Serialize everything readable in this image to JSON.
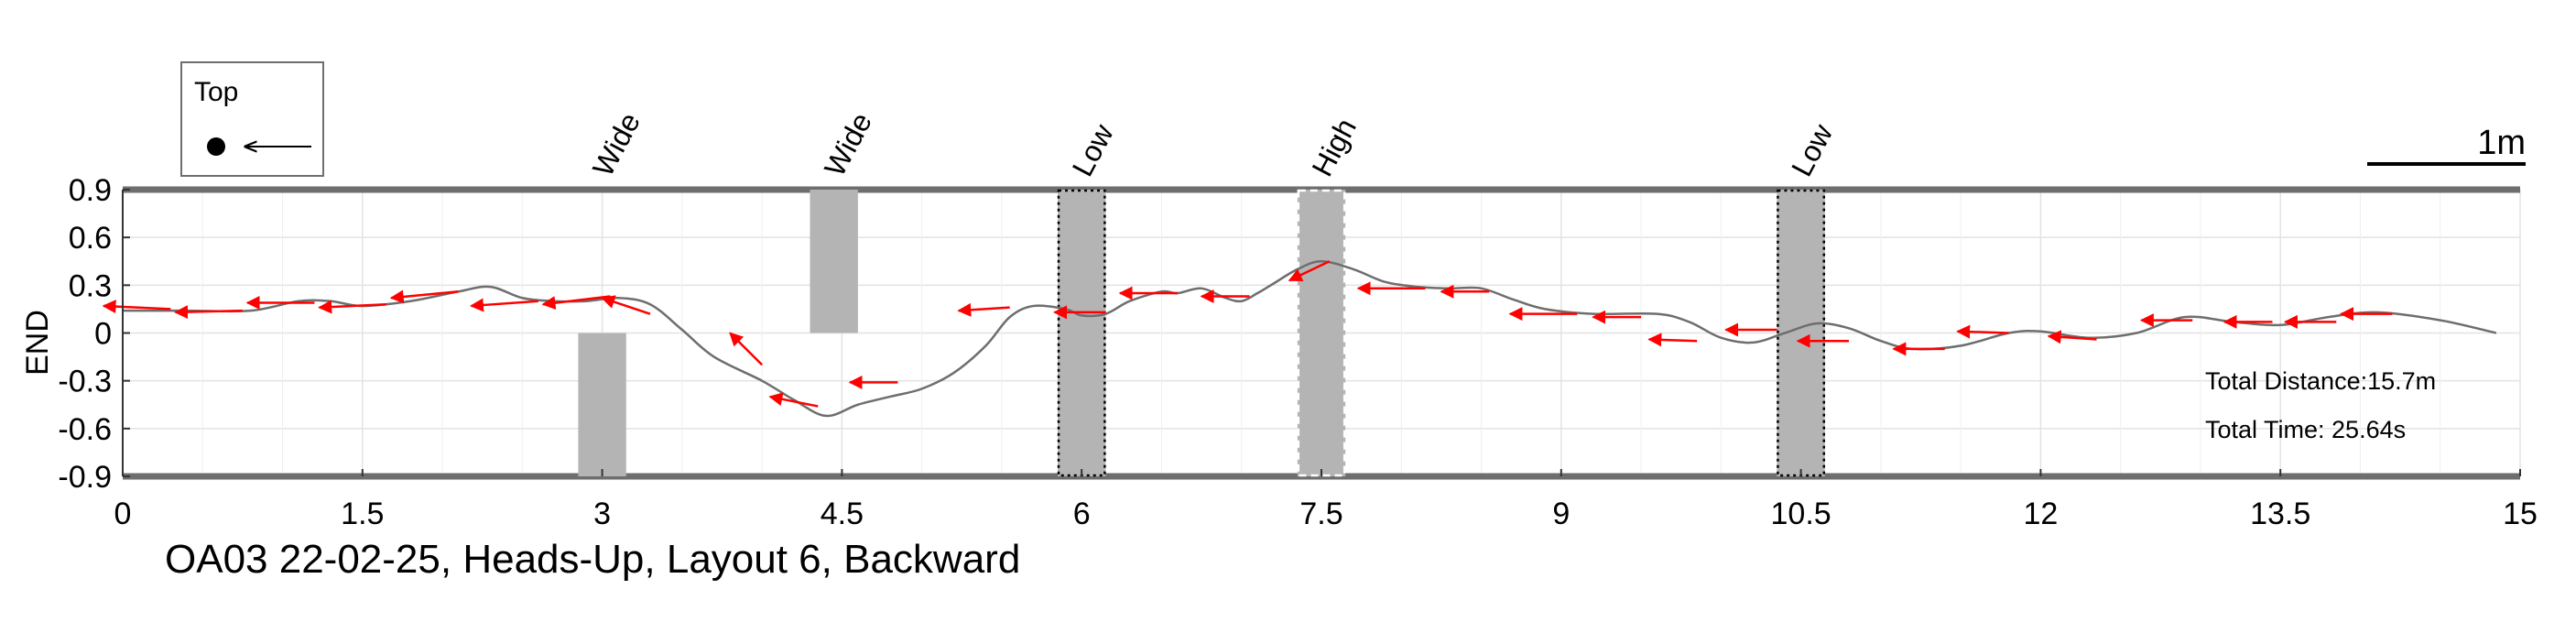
{
  "chart_data": {
    "type": "line",
    "title": "OA03 22-02-25, Heads-Up, Layout 6, Backward",
    "xlabel": "",
    "ylabel": "END",
    "xlim": [
      0,
      15
    ],
    "ylim": [
      -0.9,
      0.9
    ],
    "x_ticks": [
      0,
      1.5,
      3,
      4.5,
      6,
      7.5,
      9,
      10.5,
      12,
      13.5,
      15
    ],
    "x_tick_labels": [
      "0",
      "1.5",
      "3",
      "4.5",
      "6",
      "7.5",
      "9",
      "10.5",
      "12",
      "13.5",
      "15"
    ],
    "y_ticks": [
      -0.9,
      -0.6,
      -0.3,
      0,
      0.3,
      0.6,
      0.9
    ],
    "y_tick_labels": [
      "-0.9",
      "-0.6",
      "-0.3",
      "0",
      "0.3",
      "0.6",
      "0.9"
    ],
    "grid": true,
    "trajectory": {
      "color": "#6e6e6e",
      "x": [
        0,
        0.4,
        0.8,
        1.1,
        1.3,
        1.5,
        1.8,
        2.1,
        2.3,
        2.5,
        2.7,
        2.9,
        3.1,
        3.3,
        3.5,
        3.7,
        4.0,
        4.2,
        4.4,
        4.6,
        4.8,
        5.0,
        5.2,
        5.4,
        5.55,
        5.7,
        5.9,
        6.0,
        6.15,
        6.3,
        6.5,
        6.6,
        6.75,
        6.9,
        7.0,
        7.1,
        7.2,
        7.35,
        7.5,
        7.7,
        7.9,
        8.1,
        8.3,
        8.5,
        8.7,
        8.9,
        9.2,
        9.6,
        9.8,
        10.0,
        10.2,
        10.4,
        10.6,
        10.8,
        11.0,
        11.2,
        11.5,
        11.8,
        12.0,
        12.3,
        12.6,
        12.9,
        13.2,
        13.5,
        13.8,
        14.1,
        14.5,
        14.85
      ],
      "y": [
        0.14,
        0.14,
        0.14,
        0.2,
        0.2,
        0.17,
        0.2,
        0.26,
        0.29,
        0.22,
        0.2,
        0.2,
        0.22,
        0.18,
        0.02,
        -0.15,
        -0.3,
        -0.42,
        -0.52,
        -0.45,
        -0.4,
        -0.35,
        -0.25,
        -0.08,
        0.1,
        0.17,
        0.15,
        0.11,
        0.12,
        0.2,
        0.26,
        0.25,
        0.28,
        0.22,
        0.2,
        0.25,
        0.31,
        0.4,
        0.45,
        0.4,
        0.32,
        0.29,
        0.28,
        0.28,
        0.21,
        0.15,
        0.12,
        0.12,
        0.07,
        -0.03,
        -0.06,
        0.0,
        0.06,
        0.03,
        -0.05,
        -0.1,
        -0.08,
        0.0,
        0.01,
        -0.03,
        0.0,
        0.1,
        0.07,
        0.05,
        0.1,
        0.13,
        0.08,
        0.0
      ]
    },
    "orientation_arrows": {
      "color": "#ff0000",
      "items": [
        {
          "x": 0.3,
          "y": 0.15,
          "dx": -0.42,
          "dy": 0.02
        },
        {
          "x": 0.75,
          "y": 0.14,
          "dx": -0.42,
          "dy": -0.01
        },
        {
          "x": 1.2,
          "y": 0.19,
          "dx": -0.42,
          "dy": 0.0
        },
        {
          "x": 1.65,
          "y": 0.18,
          "dx": -0.42,
          "dy": -0.02
        },
        {
          "x": 2.1,
          "y": 0.26,
          "dx": -0.42,
          "dy": -0.04
        },
        {
          "x": 2.6,
          "y": 0.2,
          "dx": -0.42,
          "dy": -0.03
        },
        {
          "x": 3.05,
          "y": 0.23,
          "dx": -0.42,
          "dy": -0.05
        },
        {
          "x": 3.3,
          "y": 0.12,
          "dx": -0.3,
          "dy": 0.1
        },
        {
          "x": 4.0,
          "y": -0.2,
          "dx": -0.2,
          "dy": 0.2
        },
        {
          "x": 4.35,
          "y": -0.46,
          "dx": -0.3,
          "dy": 0.06
        },
        {
          "x": 4.85,
          "y": -0.31,
          "dx": -0.3,
          "dy": 0.0
        },
        {
          "x": 5.55,
          "y": 0.16,
          "dx": -0.32,
          "dy": -0.02
        },
        {
          "x": 6.15,
          "y": 0.13,
          "dx": -0.32,
          "dy": 0.0
        },
        {
          "x": 6.6,
          "y": 0.25,
          "dx": -0.36,
          "dy": 0.0
        },
        {
          "x": 7.05,
          "y": 0.23,
          "dx": -0.3,
          "dy": 0.0
        },
        {
          "x": 7.55,
          "y": 0.45,
          "dx": -0.25,
          "dy": -0.12
        },
        {
          "x": 8.15,
          "y": 0.28,
          "dx": -0.42,
          "dy": 0.0
        },
        {
          "x": 8.55,
          "y": 0.26,
          "dx": -0.3,
          "dy": 0.0
        },
        {
          "x": 9.1,
          "y": 0.12,
          "dx": -0.42,
          "dy": 0.0
        },
        {
          "x": 9.5,
          "y": 0.1,
          "dx": -0.3,
          "dy": 0.0
        },
        {
          "x": 9.85,
          "y": -0.05,
          "dx": -0.3,
          "dy": 0.01
        },
        {
          "x": 10.35,
          "y": 0.02,
          "dx": -0.32,
          "dy": 0.0
        },
        {
          "x": 10.8,
          "y": -0.05,
          "dx": -0.32,
          "dy": 0.0
        },
        {
          "x": 11.4,
          "y": -0.1,
          "dx": -0.32,
          "dy": 0.0
        },
        {
          "x": 11.8,
          "y": 0.0,
          "dx": -0.32,
          "dy": 0.01
        },
        {
          "x": 12.35,
          "y": -0.04,
          "dx": -0.3,
          "dy": 0.02
        },
        {
          "x": 12.95,
          "y": 0.08,
          "dx": -0.32,
          "dy": 0.0
        },
        {
          "x": 13.45,
          "y": 0.07,
          "dx": -0.3,
          "dy": 0.0
        },
        {
          "x": 13.85,
          "y": 0.07,
          "dx": -0.32,
          "dy": 0.0
        },
        {
          "x": 14.2,
          "y": 0.12,
          "dx": -0.32,
          "dy": 0.0
        }
      ]
    },
    "obstacles": [
      {
        "label": "Wide",
        "x": [
          2.85,
          3.15
        ],
        "y": [
          -0.9,
          0.0
        ],
        "border": "none"
      },
      {
        "label": "Wide",
        "x": [
          4.3,
          4.6
        ],
        "y": [
          0.0,
          0.9
        ],
        "border": "none"
      },
      {
        "label": "Low",
        "x": [
          5.85,
          6.15
        ],
        "y": [
          -0.9,
          0.9
        ],
        "border": "dotted"
      },
      {
        "label": "High",
        "x": [
          7.35,
          7.65
        ],
        "y": [
          -0.9,
          0.9
        ],
        "border": "dashed"
      },
      {
        "label": "Low",
        "x": [
          10.35,
          10.65
        ],
        "y": [
          -0.9,
          0.9
        ],
        "border": "dotted"
      }
    ],
    "annotations": [
      {
        "text": "Total Distance:15.7m"
      },
      {
        "text": "Total Time: 25.64s"
      }
    ],
    "scale_bar": {
      "label": "1m",
      "length": 1.0
    },
    "legend": {
      "label": "Top",
      "placement": "top-left"
    }
  },
  "colors": {
    "trajectory": "#6e6e6e",
    "arrows": "#ff0000",
    "obstacle_fill": "#b4b4b4",
    "grid": "#e3e3e3",
    "boundary": "#6e6e6e"
  }
}
